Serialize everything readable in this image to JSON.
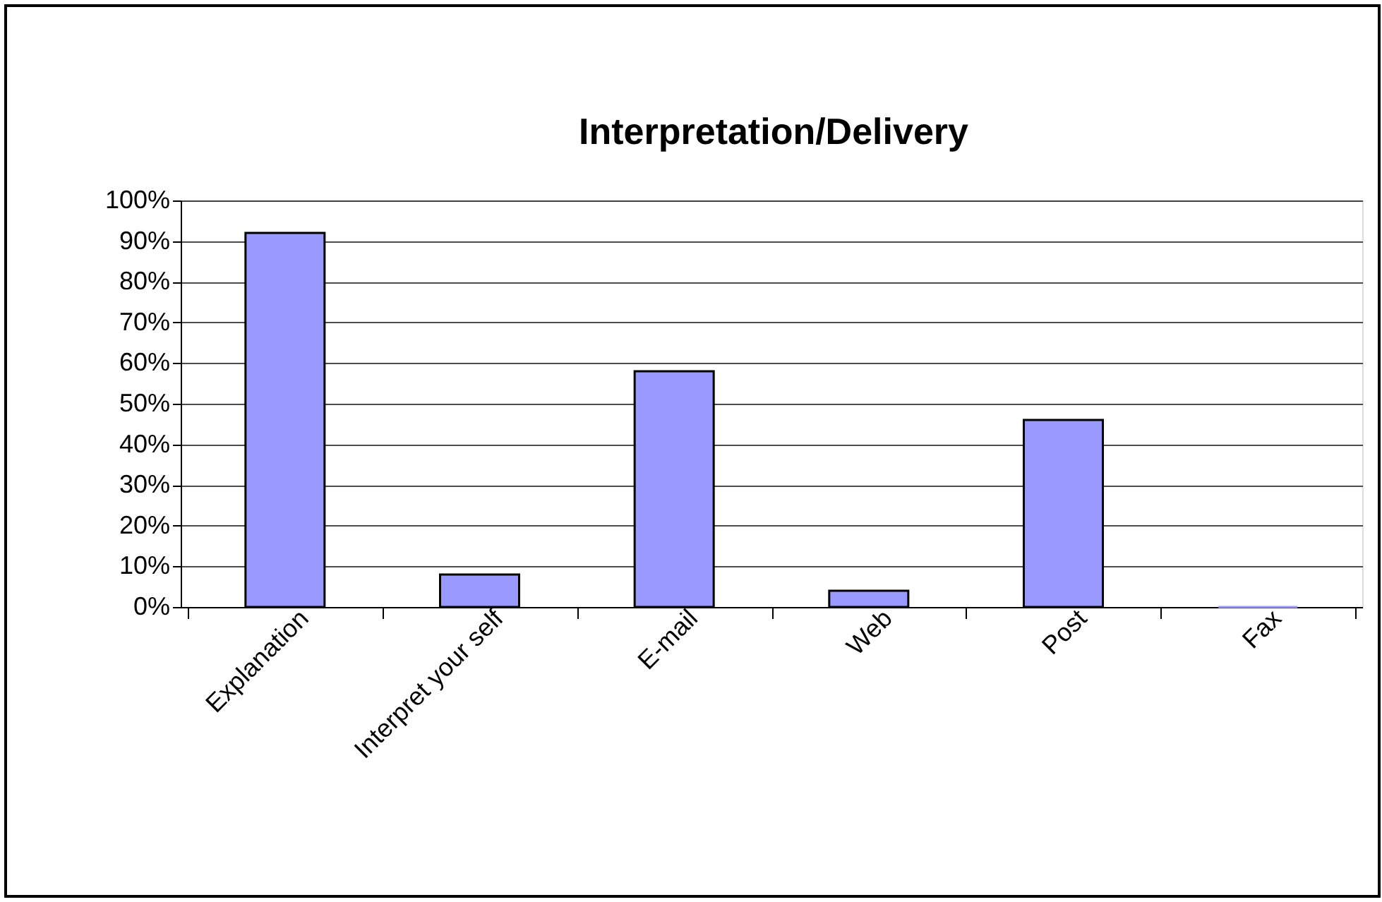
{
  "chart_data": {
    "type": "bar",
    "title": "Interpretation/Delivery",
    "categories": [
      "Explanation",
      "Interpret your self",
      "E-mail",
      "Web",
      "Post",
      "Fax"
    ],
    "values": [
      92,
      8,
      58,
      4,
      46,
      0
    ],
    "color": "#9999ff",
    "ylim": [
      0,
      100
    ],
    "yticks": [
      {
        "value": 0,
        "label": "0%"
      },
      {
        "value": 10,
        "label": "10%"
      },
      {
        "value": 20,
        "label": "20%"
      },
      {
        "value": 30,
        "label": "30%"
      },
      {
        "value": 40,
        "label": "40%"
      },
      {
        "value": 50,
        "label": "50%"
      },
      {
        "value": 60,
        "label": "60%"
      },
      {
        "value": 70,
        "label": "70%"
      },
      {
        "value": 80,
        "label": "80%"
      },
      {
        "value": 90,
        "label": "90%"
      },
      {
        "value": 100,
        "label": "100%"
      }
    ],
    "grid": "y"
  }
}
